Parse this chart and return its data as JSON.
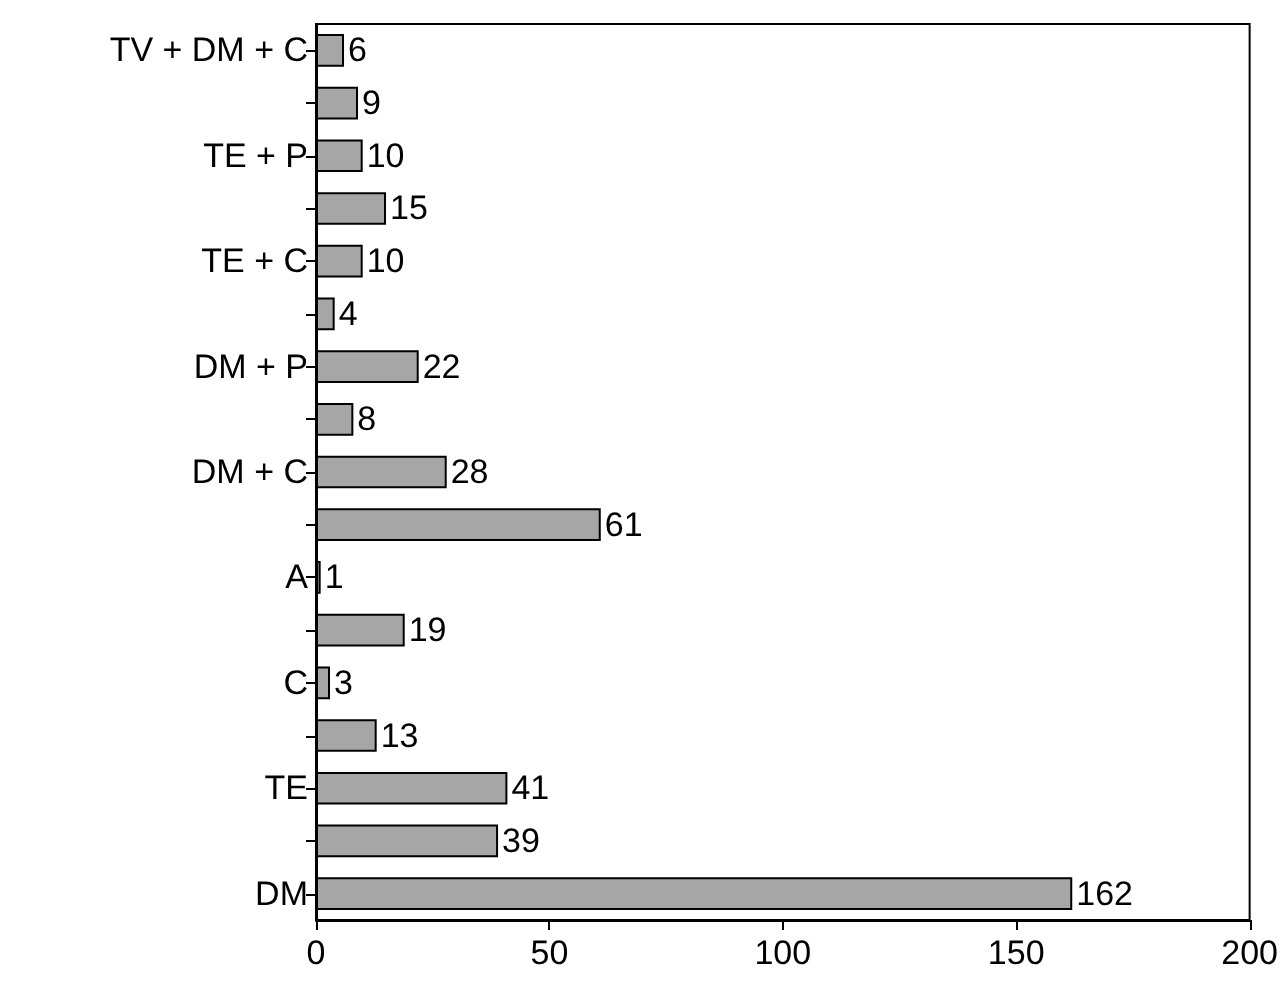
{
  "chart_data": {
    "type": "bar",
    "orientation": "horizontal",
    "categories": [
      "TV + DM + C",
      null,
      "TE + P",
      null,
      "TE + C",
      null,
      "DM + P",
      null,
      "DM + C",
      null,
      "A",
      null,
      "C",
      null,
      "TE",
      null,
      "DM"
    ],
    "values": [
      6,
      9,
      10,
      15,
      10,
      4,
      22,
      8,
      28,
      61,
      1,
      19,
      3,
      13,
      41,
      39,
      162
    ],
    "color": "#a6a6a6",
    "xlim": [
      0,
      200
    ],
    "xticks": [
      0,
      50,
      100,
      150,
      200
    ],
    "grid": false,
    "data_labels": true
  }
}
